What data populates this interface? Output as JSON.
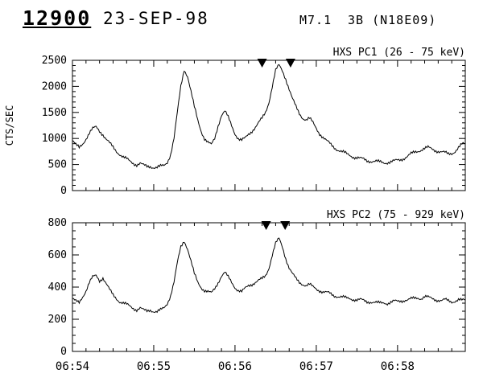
{
  "header": {
    "event_number": "12900",
    "date": "23-SEP-98",
    "goes_class": "M7.1",
    "optical_class_location": "3B (N18E09)"
  },
  "colors": {
    "line": "#000000",
    "background": "#ffffff"
  },
  "chart_data": [
    {
      "type": "line",
      "title": "HXS PC1 (26 - 75 keV)",
      "ylabel": "CTS/SEC",
      "ylim": [
        0,
        2500
      ],
      "y_major_step": 500,
      "y_minor_step": 100,
      "y_tick_labels": [
        "0",
        "500",
        "1000",
        "1500",
        "2000",
        "2500"
      ],
      "x_range_seconds": [
        0,
        290
      ],
      "x_major_ticks_seconds": [
        0,
        60,
        120,
        180,
        240
      ],
      "x_tick_labels": [
        "06:54",
        "06:55",
        "06:56",
        "06:57",
        "06:58"
      ],
      "x_minor_step_seconds": 10,
      "marker_times_seconds": [
        140,
        161
      ],
      "noise_amplitude": 45,
      "values": [
        960,
        870,
        820,
        900,
        1000,
        1100,
        1180,
        1220,
        1150,
        1080,
        980,
        900,
        830,
        760,
        700,
        640,
        600,
        560,
        530,
        500,
        520,
        480,
        460,
        470,
        450,
        440,
        460,
        480,
        550,
        700,
        1000,
        1500,
        2000,
        2330,
        2200,
        1900,
        1600,
        1350,
        1150,
        1000,
        920,
        870,
        1000,
        1250,
        1450,
        1520,
        1400,
        1250,
        1100,
        1000,
        960,
        1000,
        1080,
        1150,
        1220,
        1300,
        1380,
        1500,
        1700,
        2000,
        2300,
        2400,
        2300,
        2150,
        1950,
        1750,
        1600,
        1480,
        1400,
        1360,
        1380,
        1300,
        1200,
        1100,
        1020,
        950,
        900,
        850,
        800,
        760,
        730,
        700,
        680,
        650,
        630,
        610,
        600,
        580,
        570,
        560,
        550,
        545,
        540,
        545,
        550,
        560,
        580,
        600,
        630,
        660,
        700,
        730,
        760,
        790,
        810,
        820,
        800,
        780,
        760,
        740,
        720,
        700,
        720,
        760,
        820,
        880,
        900
      ]
    },
    {
      "type": "line",
      "title": "HXS PC2 (75 - 929 keV)",
      "ylabel": "",
      "ylim": [
        0,
        800
      ],
      "y_major_step": 200,
      "y_minor_step": 50,
      "y_tick_labels": [
        "0",
        "200",
        "400",
        "600",
        "800"
      ],
      "x_range_seconds": [
        0,
        290
      ],
      "x_major_ticks_seconds": [
        0,
        60,
        120,
        180,
        240
      ],
      "x_tick_labels": [
        "06:54",
        "06:55",
        "06:56",
        "06:57",
        "06:58"
      ],
      "x_minor_step_seconds": 10,
      "marker_times_seconds": [
        143,
        157
      ],
      "noise_amplitude": 14,
      "values": [
        330,
        310,
        300,
        340,
        380,
        430,
        460,
        470,
        440,
        460,
        420,
        380,
        350,
        330,
        310,
        300,
        290,
        280,
        270,
        260,
        270,
        255,
        250,
        260,
        250,
        245,
        255,
        270,
        300,
        350,
        430,
        550,
        650,
        690,
        640,
        560,
        480,
        430,
        400,
        380,
        370,
        360,
        390,
        430,
        470,
        490,
        460,
        430,
        400,
        380,
        370,
        390,
        410,
        420,
        430,
        440,
        450,
        470,
        520,
        600,
        670,
        700,
        650,
        580,
        520,
        480,
        450,
        430,
        420,
        410,
        415,
        400,
        390,
        380,
        370,
        365,
        360,
        350,
        345,
        340,
        335,
        330,
        330,
        325,
        320,
        320,
        315,
        310,
        310,
        305,
        300,
        300,
        305,
        300,
        305,
        310,
        310,
        315,
        320,
        320,
        325,
        330,
        335,
        330,
        340,
        335,
        330,
        325,
        320,
        315,
        320,
        315,
        310,
        315,
        320,
        315,
        320
      ]
    }
  ]
}
